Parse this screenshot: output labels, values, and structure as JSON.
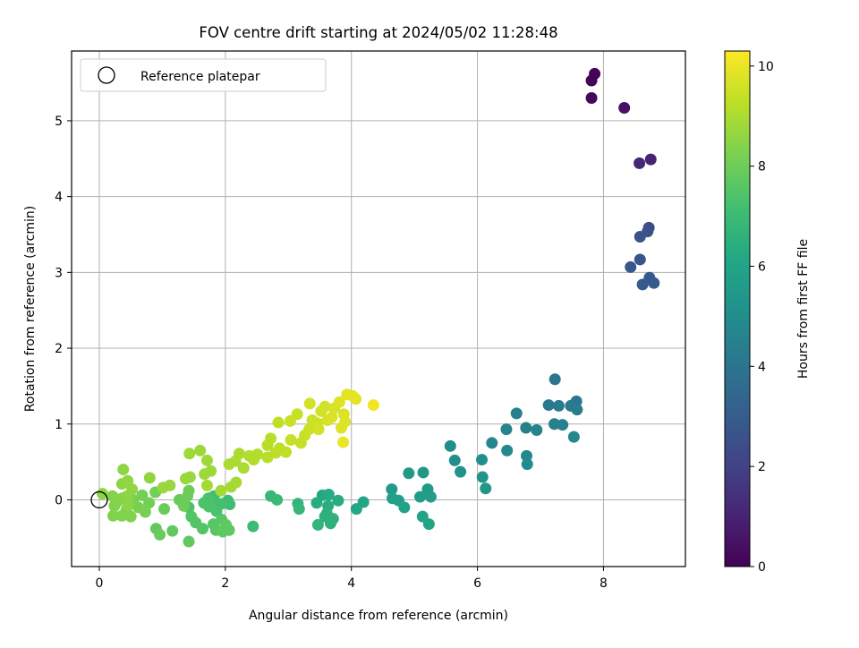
{
  "chart_data": {
    "type": "scatter",
    "title": "FOV centre drift starting at 2024/05/02 11:28:48",
    "xlabel": "Angular distance from reference (arcmin)",
    "ylabel": "Rotation from reference (arcmin)",
    "xlim": [
      -0.44,
      9.3
    ],
    "ylim": [
      -0.88,
      5.92
    ],
    "xticks": [
      0,
      2,
      4,
      6,
      8
    ],
    "yticks": [
      0,
      1,
      2,
      3,
      4,
      5
    ],
    "grid": true,
    "legend": {
      "placement": "top-left",
      "entries": [
        "Reference platepar"
      ]
    },
    "colorbar": {
      "label": "Hours from first FF file",
      "colormap": "viridis",
      "range": [
        0,
        10.3
      ],
      "ticks": [
        0,
        2,
        4,
        6,
        8,
        10
      ]
    },
    "reference_point": {
      "x": 0,
      "y": 0
    },
    "series": [
      {
        "values": [
          [
            7.81,
            5.53,
            0.1
          ],
          [
            7.86,
            5.62,
            0.1
          ],
          [
            7.81,
            5.3,
            0.2
          ],
          [
            8.33,
            5.17,
            0.5
          ],
          [
            8.75,
            4.49,
            1.0
          ],
          [
            8.57,
            4.44,
            1.1
          ],
          [
            8.72,
            3.59,
            2.4
          ],
          [
            8.7,
            3.54,
            2.5
          ],
          [
            8.58,
            3.47,
            2.6
          ],
          [
            8.58,
            3.17,
            2.7
          ],
          [
            8.43,
            3.07,
            2.8
          ],
          [
            8.73,
            2.93,
            2.9
          ],
          [
            8.62,
            2.84,
            2.9
          ],
          [
            8.8,
            2.86,
            2.9
          ],
          [
            7.23,
            1.59,
            4.0
          ],
          [
            7.57,
            1.3,
            4.1
          ],
          [
            7.13,
            1.25,
            4.1
          ],
          [
            7.29,
            1.24,
            4.2
          ],
          [
            7.48,
            1.24,
            4.2
          ],
          [
            7.58,
            1.19,
            4.3
          ],
          [
            6.62,
            1.14,
            4.4
          ],
          [
            7.22,
            1.0,
            4.4
          ],
          [
            7.35,
            0.99,
            4.5
          ],
          [
            6.77,
            0.95,
            4.5
          ],
          [
            6.94,
            0.92,
            4.6
          ],
          [
            6.46,
            0.93,
            4.6
          ],
          [
            7.53,
            0.83,
            4.7
          ],
          [
            6.23,
            0.75,
            4.7
          ],
          [
            6.78,
            0.58,
            4.8
          ],
          [
            6.47,
            0.65,
            4.8
          ],
          [
            6.79,
            0.47,
            4.9
          ],
          [
            5.57,
            0.71,
            5.0
          ],
          [
            5.64,
            0.52,
            5.1
          ],
          [
            6.07,
            0.53,
            5.1
          ],
          [
            5.73,
            0.37,
            5.2
          ],
          [
            6.08,
            0.3,
            5.3
          ],
          [
            6.13,
            0.15,
            5.4
          ],
          [
            4.91,
            0.35,
            5.5
          ],
          [
            5.14,
            0.36,
            5.5
          ],
          [
            5.21,
            0.14,
            5.6
          ],
          [
            4.64,
            0.14,
            5.6
          ],
          [
            5.26,
            0.04,
            5.7
          ],
          [
            5.09,
            0.04,
            5.7
          ],
          [
            4.65,
            0.02,
            5.8
          ],
          [
            4.75,
            -0.01,
            5.8
          ],
          [
            4.84,
            -0.1,
            5.9
          ],
          [
            5.13,
            -0.22,
            6.0
          ],
          [
            5.23,
            -0.32,
            6.0
          ],
          [
            4.19,
            -0.03,
            6.1
          ],
          [
            4.08,
            -0.12,
            6.1
          ],
          [
            3.54,
            0.06,
            6.2
          ],
          [
            3.64,
            0.07,
            6.3
          ],
          [
            3.79,
            -0.01,
            6.3
          ],
          [
            3.45,
            -0.04,
            6.4
          ],
          [
            3.63,
            -0.08,
            6.4
          ],
          [
            3.61,
            -0.18,
            6.5
          ],
          [
            3.58,
            -0.22,
            6.5
          ],
          [
            3.71,
            -0.25,
            6.6
          ],
          [
            3.67,
            -0.31,
            6.6
          ],
          [
            3.47,
            -0.33,
            6.7
          ],
          [
            3.15,
            -0.05,
            6.7
          ],
          [
            3.17,
            -0.12,
            6.8
          ],
          [
            2.72,
            0.05,
            6.8
          ],
          [
            2.82,
            0.0,
            6.9
          ],
          [
            2.44,
            -0.35,
            7.0
          ],
          [
            2.04,
            -0.01,
            7.0
          ],
          [
            2.07,
            -0.06,
            7.1
          ],
          [
            1.82,
            0.05,
            7.1
          ],
          [
            1.79,
            -0.03,
            7.2
          ],
          [
            1.95,
            -0.05,
            7.2
          ],
          [
            1.73,
            0.02,
            7.3
          ],
          [
            1.66,
            -0.04,
            7.3
          ],
          [
            1.86,
            -0.15,
            7.3
          ],
          [
            1.74,
            -0.09,
            7.4
          ],
          [
            1.42,
            -0.1,
            7.4
          ],
          [
            1.53,
            -0.3,
            7.5
          ],
          [
            1.46,
            -0.22,
            7.5
          ],
          [
            1.64,
            -0.38,
            7.5
          ],
          [
            1.81,
            -0.32,
            7.6
          ],
          [
            1.94,
            -0.26,
            7.6
          ],
          [
            1.85,
            -0.4,
            7.6
          ],
          [
            2.01,
            -0.33,
            7.7
          ],
          [
            1.96,
            -0.42,
            7.7
          ],
          [
            2.06,
            -0.4,
            7.7
          ],
          [
            1.42,
            -0.55,
            7.8
          ],
          [
            1.16,
            -0.41,
            7.8
          ],
          [
            0.9,
            -0.38,
            7.8
          ],
          [
            0.96,
            -0.46,
            7.9
          ],
          [
            1.03,
            -0.12,
            7.9
          ],
          [
            1.27,
            0.0,
            7.9
          ],
          [
            1.4,
            0.05,
            8.0
          ],
          [
            1.42,
            0.12,
            8.0
          ],
          [
            1.34,
            -0.08,
            8.0
          ],
          [
            0.89,
            0.1,
            8.1
          ],
          [
            0.79,
            -0.04,
            8.1
          ],
          [
            0.68,
            0.06,
            8.1
          ],
          [
            0.54,
            0.0,
            8.2
          ],
          [
            0.62,
            -0.1,
            8.2
          ],
          [
            0.73,
            -0.16,
            8.2
          ],
          [
            0.5,
            -0.22,
            8.3
          ],
          [
            0.36,
            -0.21,
            8.3
          ],
          [
            0.43,
            -0.13,
            8.3
          ],
          [
            0.22,
            -0.21,
            8.3
          ],
          [
            0.24,
            -0.08,
            8.4
          ],
          [
            0.29,
            -0.02,
            8.4
          ],
          [
            0.21,
            0.05,
            8.4
          ],
          [
            0.36,
            0.02,
            8.4
          ],
          [
            0.05,
            0.08,
            8.5
          ],
          [
            0.44,
            0.05,
            8.5
          ],
          [
            0.46,
            -0.07,
            8.5
          ],
          [
            0.36,
            0.21,
            8.5
          ],
          [
            0.38,
            0.4,
            8.5
          ],
          [
            0.45,
            0.25,
            8.6
          ],
          [
            0.52,
            0.14,
            8.6
          ],
          [
            0.8,
            0.29,
            8.6
          ],
          [
            1.01,
            0.16,
            8.7
          ],
          [
            1.12,
            0.19,
            8.7
          ],
          [
            1.37,
            0.28,
            8.7
          ],
          [
            1.44,
            0.3,
            8.7
          ],
          [
            1.43,
            0.61,
            8.8
          ],
          [
            1.6,
            0.65,
            8.8
          ],
          [
            1.71,
            0.52,
            8.8
          ],
          [
            1.77,
            0.38,
            8.8
          ],
          [
            1.67,
            0.34,
            8.8
          ],
          [
            1.71,
            0.19,
            8.9
          ],
          [
            1.93,
            0.12,
            8.9
          ],
          [
            2.09,
            0.17,
            8.9
          ],
          [
            2.17,
            0.23,
            8.9
          ],
          [
            2.06,
            0.47,
            9.0
          ],
          [
            2.16,
            0.51,
            9.0
          ],
          [
            2.22,
            0.61,
            9.0
          ],
          [
            2.29,
            0.42,
            9.0
          ],
          [
            2.38,
            0.58,
            9.1
          ],
          [
            2.45,
            0.53,
            9.1
          ],
          [
            2.51,
            0.6,
            9.1
          ],
          [
            2.67,
            0.56,
            9.2
          ],
          [
            2.67,
            0.72,
            9.2
          ],
          [
            2.72,
            0.81,
            9.2
          ],
          [
            2.8,
            0.62,
            9.2
          ],
          [
            2.86,
            0.68,
            9.3
          ],
          [
            2.96,
            0.63,
            9.3
          ],
          [
            2.84,
            1.02,
            9.3
          ],
          [
            3.04,
            0.79,
            9.4
          ],
          [
            3.2,
            0.75,
            9.4
          ],
          [
            3.26,
            0.85,
            9.4
          ],
          [
            3.14,
            1.13,
            9.4
          ],
          [
            3.03,
            1.04,
            9.5
          ],
          [
            3.33,
            0.93,
            9.5
          ],
          [
            3.38,
            1.05,
            9.5
          ],
          [
            3.46,
            1.01,
            9.5
          ],
          [
            3.48,
            0.93,
            9.6
          ],
          [
            3.52,
            1.17,
            9.6
          ],
          [
            3.58,
            1.23,
            9.6
          ],
          [
            3.34,
            1.27,
            9.6
          ],
          [
            3.62,
            1.05,
            9.7
          ],
          [
            3.69,
            1.09,
            9.7
          ],
          [
            3.73,
            1.21,
            9.7
          ],
          [
            3.81,
            1.29,
            9.8
          ],
          [
            3.84,
            0.95,
            9.8
          ],
          [
            3.88,
            1.13,
            9.8
          ],
          [
            3.9,
            1.03,
            9.8
          ],
          [
            3.93,
            1.39,
            9.9
          ],
          [
            4.02,
            1.37,
            9.9
          ],
          [
            4.07,
            1.33,
            9.9
          ],
          [
            3.87,
            0.76,
            10.0
          ],
          [
            4.35,
            1.25,
            10.1
          ]
        ]
      }
    ]
  }
}
